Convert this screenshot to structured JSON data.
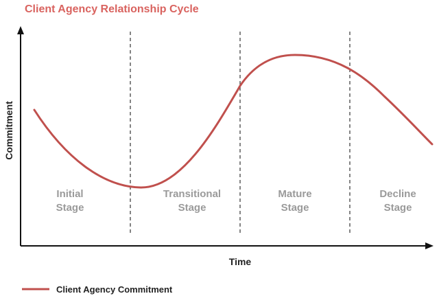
{
  "title": "Client Agency Relationship Cycle",
  "y_axis_label": "Commitment",
  "x_axis_label": "Time",
  "stages": [
    {
      "line1": "Initial",
      "line2": "Stage"
    },
    {
      "line1": "Transitional",
      "line2": "Stage"
    },
    {
      "line1": "Mature",
      "line2": "Stage"
    },
    {
      "line1": "Decline",
      "line2": "Stage"
    }
  ],
  "legend": {
    "label": "Client Agency Commitment"
  },
  "colors": {
    "accent": "#c0504d",
    "title": "#d9635f",
    "axis": "#111111",
    "divider": "#666666",
    "stage_text": "#9a9a9a"
  }
}
